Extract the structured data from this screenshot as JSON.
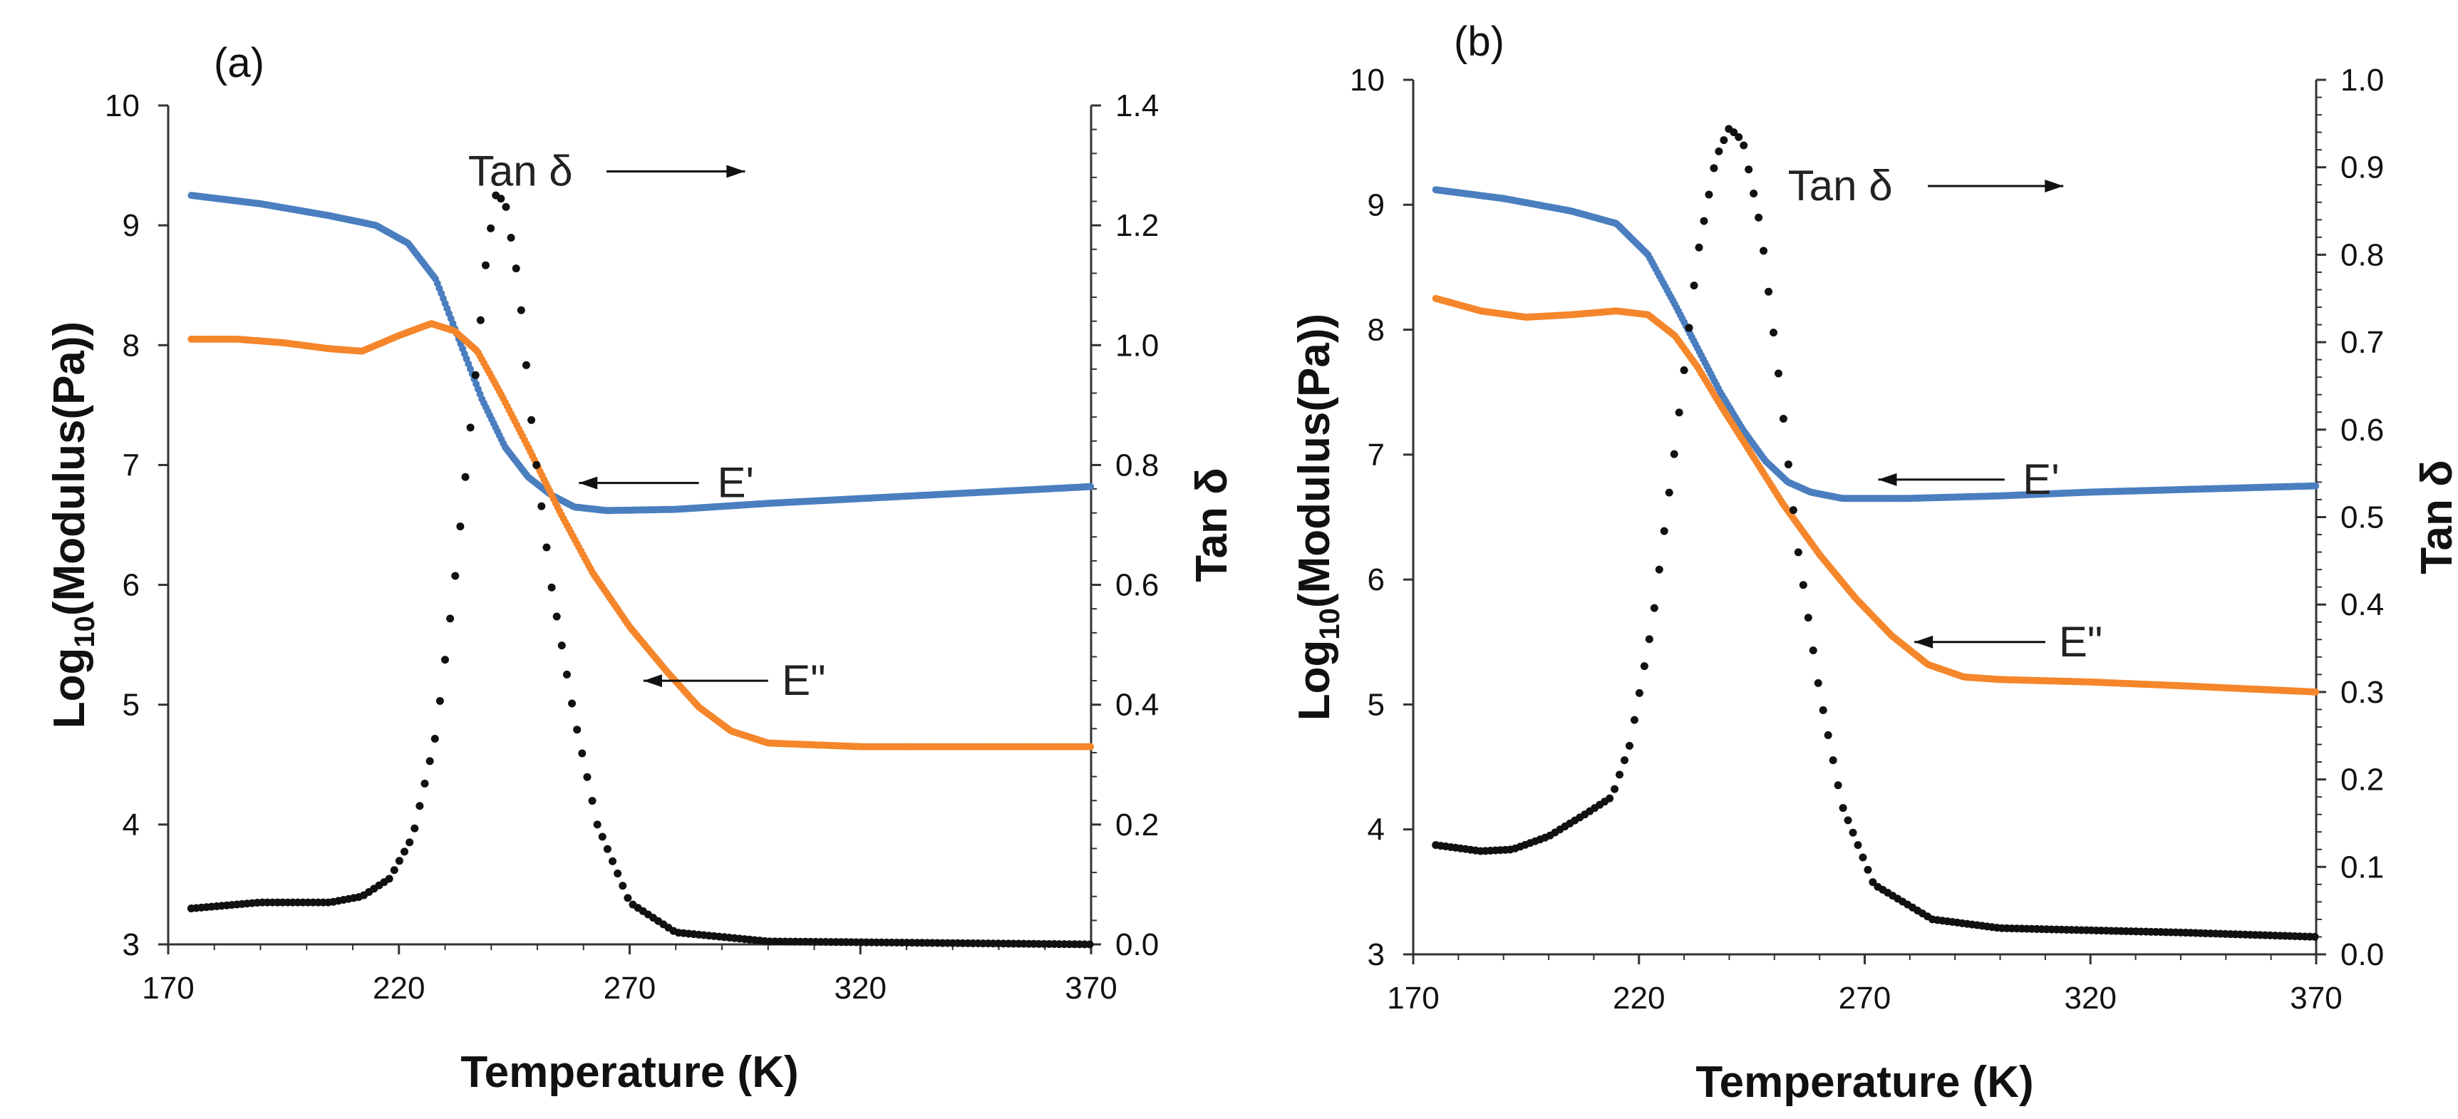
{
  "chart_data": [
    {
      "type": "scatter",
      "panel_label": "(a)",
      "xlabel": "Temperature (K)",
      "ylabel_left": {
        "prefix": "Log",
        "subscript": "10",
        "suffix": "(Modulus(Pa))"
      },
      "ylabel_right": "Tan δ",
      "xlim": [
        170,
        370
      ],
      "ylim_left": [
        3,
        10
      ],
      "ylim_right": [
        0.0,
        1.4
      ],
      "x_ticks": [
        "170",
        "220",
        "270",
        "320",
        "370"
      ],
      "y_left_ticks": [
        "3",
        "4",
        "5",
        "6",
        "7",
        "8",
        "9",
        "10"
      ],
      "y_right_ticks": [
        "0.0",
        "0.2",
        "0.4",
        "0.6",
        "0.8",
        "1.0",
        "1.2",
        "1.4"
      ],
      "series": [
        {
          "name": "E'",
          "axis": "left",
          "color": "#4a7ebf",
          "points": [
            [
              175,
              9.25
            ],
            [
              190,
              9.18
            ],
            [
              205,
              9.08
            ],
            [
              215,
              9.0
            ],
            [
              222,
              8.85
            ],
            [
              228,
              8.55
            ],
            [
              233,
              8.05
            ],
            [
              238,
              7.55
            ],
            [
              243,
              7.15
            ],
            [
              248,
              6.9
            ],
            [
              253,
              6.75
            ],
            [
              258,
              6.65
            ],
            [
              265,
              6.62
            ],
            [
              280,
              6.63
            ],
            [
              300,
              6.68
            ],
            [
              320,
              6.72
            ],
            [
              340,
              6.76
            ],
            [
              370,
              6.82
            ]
          ]
        },
        {
          "name": "E\"",
          "axis": "left",
          "color": "#f5862b",
          "points": [
            [
              175,
              8.05
            ],
            [
              185,
              8.05
            ],
            [
              195,
              8.02
            ],
            [
              205,
              7.97
            ],
            [
              212,
              7.95
            ],
            [
              220,
              8.08
            ],
            [
              227,
              8.18
            ],
            [
              232,
              8.12
            ],
            [
              237,
              7.95
            ],
            [
              242,
              7.6
            ],
            [
              248,
              7.15
            ],
            [
              255,
              6.6
            ],
            [
              262,
              6.1
            ],
            [
              270,
              5.65
            ],
            [
              278,
              5.28
            ],
            [
              285,
              4.98
            ],
            [
              292,
              4.78
            ],
            [
              300,
              4.68
            ],
            [
              320,
              4.65
            ],
            [
              340,
              4.65
            ],
            [
              370,
              4.65
            ]
          ]
        },
        {
          "name": "Tan δ",
          "axis": "right",
          "color": "#111111",
          "points": [
            [
              175,
              0.06
            ],
            [
              190,
              0.07
            ],
            [
              205,
              0.07
            ],
            [
              212,
              0.08
            ],
            [
              218,
              0.11
            ],
            [
              223,
              0.18
            ],
            [
              228,
              0.35
            ],
            [
              232,
              0.6
            ],
            [
              236,
              0.9
            ],
            [
              239,
              1.15
            ],
            [
              241,
              1.25
            ],
            [
              243,
              1.24
            ],
            [
              246,
              1.1
            ],
            [
              249,
              0.85
            ],
            [
              253,
              0.6
            ],
            [
              258,
              0.38
            ],
            [
              263,
              0.2
            ],
            [
              270,
              0.07
            ],
            [
              280,
              0.02
            ],
            [
              300,
              0.005
            ],
            [
              370,
              0.0
            ]
          ]
        }
      ],
      "annotations": [
        {
          "text": "Tan δ",
          "at": [
            235,
            9.45
          ],
          "arrow_from": [
            265,
            9.45
          ],
          "arrow_to": [
            295,
            9.45
          ]
        },
        {
          "text": "E'",
          "at": [
            289,
            6.85
          ],
          "arrow_from": [
            285,
            6.85
          ],
          "arrow_to": [
            259,
            6.85
          ]
        },
        {
          "text": "E\"",
          "at": [
            303,
            5.2
          ],
          "arrow_from": [
            300,
            5.2
          ],
          "arrow_to": [
            273,
            5.2
          ]
        }
      ]
    },
    {
      "type": "scatter",
      "panel_label": "(b)",
      "xlabel": "Temperature (K)",
      "ylabel_left": {
        "prefix": "Log",
        "subscript": "10",
        "suffix": "(Modulus(Pa))"
      },
      "ylabel_right": "Tan δ",
      "xlim": [
        170,
        370
      ],
      "ylim_left": [
        3,
        10
      ],
      "ylim_right": [
        0.0,
        1.0
      ],
      "x_ticks": [
        "170",
        "220",
        "270",
        "320",
        "370"
      ],
      "y_left_ticks": [
        "3",
        "4",
        "5",
        "6",
        "7",
        "8",
        "9",
        "10"
      ],
      "y_right_ticks": [
        "0.0",
        "0.1",
        "0.2",
        "0.3",
        "0.4",
        "0.5",
        "0.6",
        "0.7",
        "0.8",
        "0.9",
        "1.0"
      ],
      "series": [
        {
          "name": "E'",
          "axis": "left",
          "color": "#4a7ebf",
          "points": [
            [
              175,
              9.12
            ],
            [
              190,
              9.05
            ],
            [
              205,
              8.95
            ],
            [
              215,
              8.85
            ],
            [
              222,
              8.6
            ],
            [
              228,
              8.2
            ],
            [
              233,
              7.85
            ],
            [
              238,
              7.5
            ],
            [
              243,
              7.2
            ],
            [
              248,
              6.95
            ],
            [
              253,
              6.78
            ],
            [
              258,
              6.7
            ],
            [
              265,
              6.65
            ],
            [
              280,
              6.65
            ],
            [
              300,
              6.67
            ],
            [
              320,
              6.7
            ],
            [
              340,
              6.72
            ],
            [
              370,
              6.75
            ]
          ]
        },
        {
          "name": "E\"",
          "axis": "left",
          "color": "#f5862b",
          "points": [
            [
              175,
              8.25
            ],
            [
              185,
              8.15
            ],
            [
              195,
              8.1
            ],
            [
              205,
              8.12
            ],
            [
              215,
              8.15
            ],
            [
              222,
              8.12
            ],
            [
              228,
              7.95
            ],
            [
              233,
              7.7
            ],
            [
              238,
              7.4
            ],
            [
              245,
              7.0
            ],
            [
              252,
              6.6
            ],
            [
              260,
              6.2
            ],
            [
              268,
              5.85
            ],
            [
              276,
              5.55
            ],
            [
              284,
              5.32
            ],
            [
              292,
              5.22
            ],
            [
              300,
              5.2
            ],
            [
              320,
              5.18
            ],
            [
              340,
              5.15
            ],
            [
              370,
              5.1
            ]
          ]
        },
        {
          "name": "Tan δ",
          "axis": "right",
          "color": "#111111",
          "points": [
            [
              175,
              0.125
            ],
            [
              185,
              0.118
            ],
            [
              192,
              0.12
            ],
            [
              200,
              0.135
            ],
            [
              208,
              0.16
            ],
            [
              214,
              0.18
            ],
            [
              218,
              0.24
            ],
            [
              223,
              0.38
            ],
            [
              228,
              0.58
            ],
            [
              233,
              0.8
            ],
            [
              237,
              0.91
            ],
            [
              240,
              0.945
            ],
            [
              243,
              0.93
            ],
            [
              247,
              0.83
            ],
            [
              251,
              0.66
            ],
            [
              255,
              0.47
            ],
            [
              260,
              0.3
            ],
            [
              265,
              0.17
            ],
            [
              272,
              0.08
            ],
            [
              285,
              0.04
            ],
            [
              300,
              0.03
            ],
            [
              340,
              0.025
            ],
            [
              370,
              0.02
            ]
          ]
        }
      ],
      "annotations": [
        {
          "text": "Tan δ",
          "at": [
            253,
            9.15
          ],
          "arrow_from": [
            284,
            9.15
          ],
          "arrow_to": [
            314,
            9.15
          ]
        },
        {
          "text": "E'",
          "at": [
            305,
            6.8
          ],
          "arrow_from": [
            301,
            6.8
          ],
          "arrow_to": [
            273,
            6.8
          ]
        },
        {
          "text": "E\"",
          "at": [
            313,
            5.5
          ],
          "arrow_from": [
            310,
            5.5
          ],
          "arrow_to": [
            281,
            5.5
          ]
        }
      ]
    }
  ]
}
